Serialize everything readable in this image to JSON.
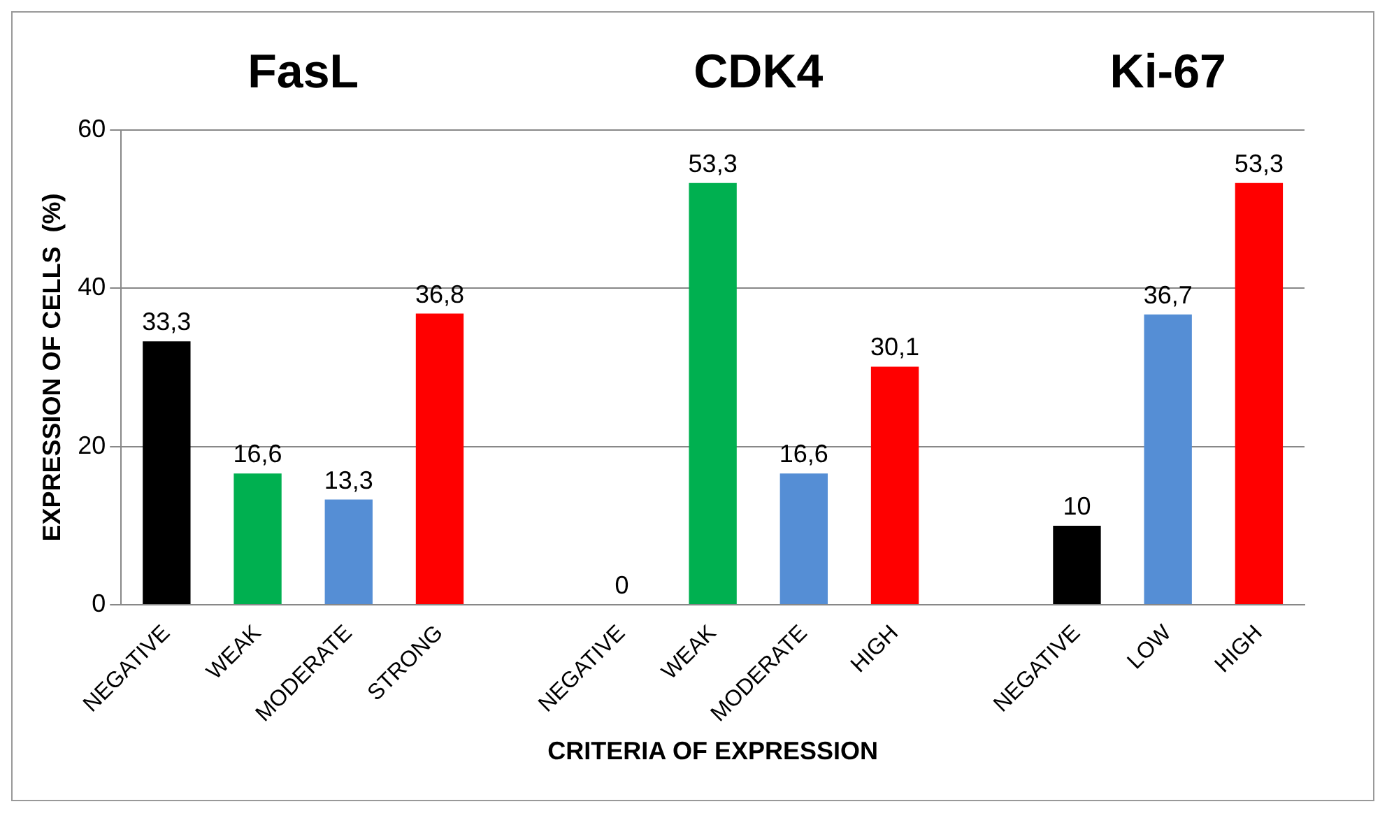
{
  "chart_data": {
    "type": "bar",
    "xlabel": "CRITERIA OF EXPRESSION",
    "ylabel": "EXPRESSION OF CELLS  (%)",
    "annotations": [
      "FasL",
      "CDK4",
      "Ki-67"
    ],
    "categories": [
      "NEGATIVE",
      "WEAK",
      "MODERATE",
      "STRONG",
      null,
      "NEGATIVE",
      "WEAK",
      "MODERATE",
      "HIGH",
      null,
      "NEGATIVE",
      "LOW",
      "HIGH"
    ],
    "values": [
      33.3,
      16.6,
      13.3,
      36.8,
      null,
      0,
      53.3,
      16.6,
      30.1,
      null,
      10,
      36.7,
      53.3
    ],
    "value_labels": [
      "33,3",
      "16,6",
      "13,3",
      "36,8",
      null,
      "0",
      "53,3",
      "16,6",
      "30,1",
      null,
      "10",
      "36,7",
      "53,3"
    ],
    "colors": [
      "#000000",
      "#00b050",
      "#558ed5",
      "#ff0000",
      "#000000",
      "#000000",
      "#00b050",
      "#558ed5",
      "#ff0000",
      "#000000",
      "#000000",
      "#558ed5",
      "#ff0000"
    ],
    "ylim": [
      0,
      60
    ],
    "yticks": [
      0,
      20,
      40,
      60
    ],
    "grid": "y",
    "legend": false
  }
}
